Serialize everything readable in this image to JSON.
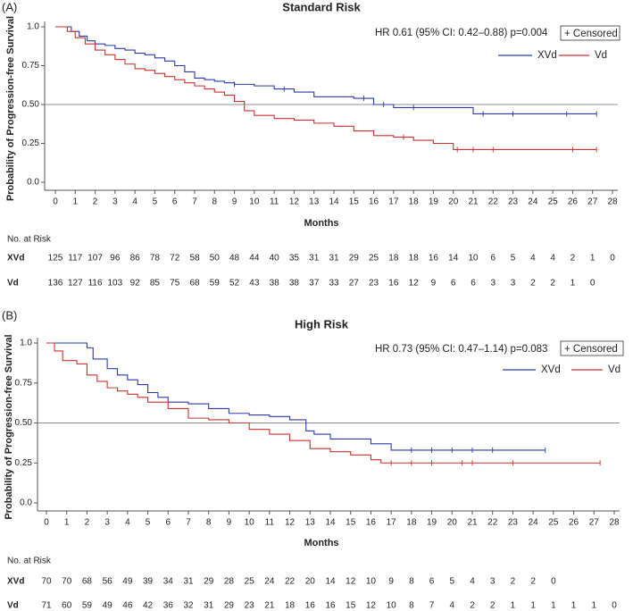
{
  "chart_data": [
    {
      "type": "step",
      "panel_label": "(A)",
      "title": "Standard Risk",
      "annotation": "HR 0.61 (95% CI: 0.42–0.88) p=0.004",
      "censored_label": "+ Censored",
      "xlabel": "Months",
      "ylabel": "Probability of Progression-free Survival",
      "xlim": [
        0,
        28
      ],
      "xticks": [
        0,
        1,
        2,
        3,
        4,
        5,
        6,
        7,
        8,
        9,
        10,
        11,
        12,
        13,
        14,
        15,
        16,
        17,
        18,
        19,
        20,
        21,
        22,
        23,
        24,
        25,
        26,
        27,
        28
      ],
      "ylim": [
        0,
        1
      ],
      "yticks": [
        {
          "value": 0,
          "label": "0.0"
        },
        0.25,
        {
          "value": 0.5,
          "label": "0.50"
        },
        0.75,
        {
          "value": 1,
          "label": "1.0"
        }
      ],
      "hline": 0.5,
      "risk_title": "No. at Risk",
      "series": [
        {
          "name": "XVd",
          "color": "#2b3aa8",
          "x": [
            0,
            0.8,
            1.2,
            1.6,
            2,
            2.5,
            3,
            3.5,
            4,
            4.5,
            5,
            5.5,
            6,
            6.5,
            7,
            7.5,
            8,
            8.5,
            9,
            10,
            11,
            12,
            13,
            14,
            15,
            16,
            17,
            19,
            21,
            27.2
          ],
          "values": [
            1,
            0.97,
            0.94,
            0.91,
            0.89,
            0.88,
            0.86,
            0.85,
            0.83,
            0.82,
            0.8,
            0.78,
            0.75,
            0.71,
            0.67,
            0.66,
            0.65,
            0.64,
            0.63,
            0.62,
            0.6,
            0.58,
            0.55,
            0.55,
            0.54,
            0.5,
            0.48,
            0.48,
            0.44,
            0.44
          ],
          "censored": [
            9,
            11.5,
            15.5,
            16.5,
            18,
            21.5,
            23,
            25.7,
            27.2
          ],
          "at_risk": [
            125,
            117,
            107,
            96,
            86,
            78,
            72,
            58,
            50,
            48,
            44,
            40,
            35,
            31,
            31,
            29,
            25,
            18,
            18,
            16,
            14,
            10,
            6,
            5,
            4,
            4,
            2,
            1,
            0
          ]
        },
        {
          "name": "Vd",
          "color": "#c8322d",
          "x": [
            0,
            0.6,
            1,
            1.5,
            2,
            2.5,
            3,
            3.5,
            4,
            4.5,
            5,
            5.5,
            6,
            6.5,
            7,
            7.5,
            8,
            8.5,
            9,
            9.5,
            10,
            11,
            12,
            13,
            14,
            15,
            16,
            17,
            18,
            19,
            20,
            27.2
          ],
          "values": [
            1,
            0.97,
            0.93,
            0.89,
            0.85,
            0.82,
            0.79,
            0.76,
            0.73,
            0.72,
            0.7,
            0.68,
            0.66,
            0.64,
            0.62,
            0.6,
            0.58,
            0.56,
            0.52,
            0.46,
            0.43,
            0.41,
            0.4,
            0.38,
            0.36,
            0.33,
            0.3,
            0.29,
            0.27,
            0.25,
            0.21,
            0.21
          ],
          "censored": [
            17.5,
            20.2,
            21,
            22,
            26,
            27.2
          ],
          "at_risk": [
            136,
            127,
            116,
            103,
            92,
            85,
            75,
            68,
            59,
            52,
            43,
            38,
            38,
            37,
            33,
            27,
            23,
            16,
            12,
            9,
            6,
            6,
            3,
            3,
            2,
            2,
            1,
            0
          ]
        }
      ]
    },
    {
      "type": "step",
      "panel_label": "(B)",
      "title": "High Risk",
      "annotation": "HR 0.73 (95% CI: 0.47–1.14) p=0.083",
      "censored_label": "+ Censored",
      "xlabel": "Months",
      "ylabel": "Probability of Progression-free Survival",
      "xlim": [
        0,
        28
      ],
      "xticks": [
        0,
        1,
        2,
        3,
        4,
        5,
        6,
        7,
        8,
        9,
        10,
        11,
        12,
        13,
        14,
        15,
        16,
        17,
        18,
        19,
        20,
        21,
        22,
        23,
        24,
        25,
        26,
        27,
        28
      ],
      "ylim": [
        0,
        1
      ],
      "yticks": [
        {
          "value": 0,
          "label": "0.0"
        },
        0.25,
        {
          "value": 0.5,
          "label": "0.50"
        },
        0.75,
        {
          "value": 1,
          "label": "1.0"
        }
      ],
      "hline": 0.5,
      "risk_title": "No. at Risk",
      "series": [
        {
          "name": "XVd",
          "color": "#2b3aa8",
          "x": [
            0,
            2,
            2.3,
            3,
            3.5,
            4,
            4.5,
            5,
            5.5,
            6,
            7,
            8,
            9,
            10,
            11,
            12,
            12.8,
            13.2,
            14,
            15,
            16,
            17,
            24.6
          ],
          "values": [
            1,
            0.97,
            0.9,
            0.84,
            0.8,
            0.77,
            0.74,
            0.69,
            0.66,
            0.63,
            0.62,
            0.59,
            0.56,
            0.55,
            0.54,
            0.52,
            0.45,
            0.43,
            0.4,
            0.4,
            0.37,
            0.33,
            0.33
          ],
          "censored": [
            18,
            19,
            20,
            21,
            22,
            24.6
          ],
          "at_risk": [
            70,
            70,
            68,
            56,
            49,
            39,
            34,
            31,
            29,
            28,
            25,
            24,
            22,
            20,
            14,
            12,
            10,
            9,
            8,
            6,
            5,
            4,
            3,
            2,
            2,
            0
          ]
        },
        {
          "name": "Vd",
          "color": "#c8322d",
          "x": [
            0,
            0.4,
            0.8,
            1.5,
            2,
            2.5,
            3,
            3.5,
            4,
            4.5,
            5,
            6,
            7,
            8,
            9,
            10,
            11,
            12,
            13,
            14,
            15,
            16,
            16.5,
            27.3
          ],
          "values": [
            1,
            0.95,
            0.89,
            0.87,
            0.8,
            0.76,
            0.72,
            0.7,
            0.68,
            0.66,
            0.63,
            0.59,
            0.53,
            0.52,
            0.5,
            0.46,
            0.43,
            0.39,
            0.34,
            0.32,
            0.3,
            0.27,
            0.25,
            0.25
          ],
          "censored": [
            17,
            18,
            19,
            20.5,
            21,
            23,
            27.3
          ],
          "at_risk": [
            71,
            60,
            59,
            49,
            46,
            42,
            36,
            32,
            31,
            29,
            23,
            21,
            18,
            16,
            16,
            15,
            12,
            10,
            8,
            7,
            4,
            2,
            2,
            1,
            1,
            1,
            1,
            1,
            0
          ]
        }
      ]
    }
  ]
}
